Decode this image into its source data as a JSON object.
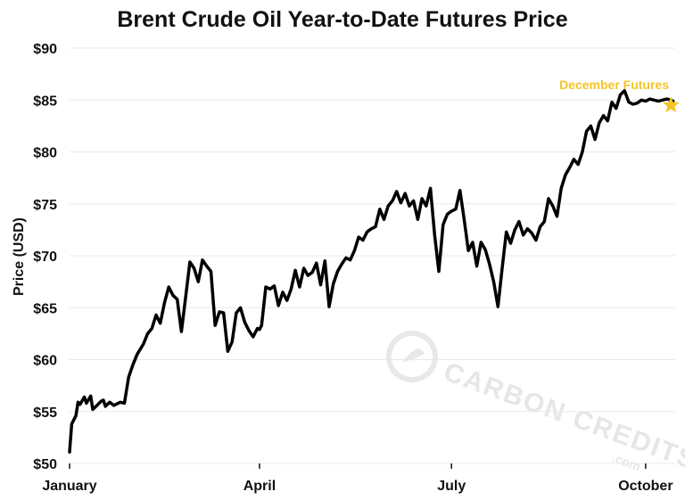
{
  "chart_data": {
    "type": "line",
    "title": "Brent Crude Oil Year-to-Date Futures Price",
    "xlabel": "",
    "ylabel": "Price (USD)",
    "ylim": [
      50,
      90
    ],
    "yticks": [
      50,
      55,
      60,
      65,
      70,
      75,
      80,
      85,
      90
    ],
    "ytick_labels": [
      "$50",
      "$55",
      "$60",
      "$65",
      "$70",
      "$75",
      "$80",
      "$85",
      "$90"
    ],
    "xticks": [
      1,
      91,
      182,
      274
    ],
    "xtick_labels": [
      "January",
      "April",
      "July",
      "October"
    ],
    "xlim": [
      1,
      288
    ],
    "grid": true,
    "legend": "none",
    "colors": {
      "line": "#000000",
      "grid": "#e8e8e8",
      "annotation": "#f5c425",
      "watermark": "#e6e6e6"
    },
    "series": [
      {
        "x": [
          1,
          2,
          4,
          5,
          6,
          8,
          9,
          11,
          12,
          13,
          14,
          15,
          16,
          17,
          18,
          20,
          22,
          25,
          27,
          29,
          31,
          33,
          36,
          38,
          40,
          42,
          44,
          46,
          48,
          50,
          52,
          54,
          56,
          58,
          60,
          62,
          64,
          66,
          68,
          70,
          72,
          74,
          76,
          78,
          80,
          82,
          84,
          86,
          88,
          89,
          90,
          91,
          92,
          94,
          96,
          98,
          100,
          102,
          104,
          106,
          108,
          110,
          112,
          114,
          116,
          118,
          120,
          122,
          124,
          126,
          128,
          130,
          132,
          134,
          136,
          138,
          140,
          142,
          144,
          146,
          148,
          150,
          152,
          154,
          156,
          158,
          160,
          162,
          164,
          166,
          168,
          170,
          172,
          174,
          176,
          178,
          180,
          182,
          184,
          186,
          188,
          190,
          192,
          194,
          196,
          198,
          200,
          202,
          204,
          206,
          208,
          210,
          212,
          214,
          216,
          218,
          220,
          222,
          224,
          226,
          228,
          230,
          232,
          234,
          236,
          238,
          240,
          242,
          244,
          246,
          248,
          250,
          252,
          254,
          256,
          258,
          260,
          262,
          264,
          266,
          268,
          270,
          272,
          274,
          276,
          278,
          280,
          282,
          284,
          286,
          287
        ],
        "values": [
          51.1,
          53.8,
          54.6,
          55.9,
          55.7,
          56.4,
          55.8,
          56.5,
          55.2,
          55.4,
          55.6,
          55.8,
          56.0,
          56.1,
          55.5,
          55.9,
          55.6,
          55.9,
          55.8,
          58.3,
          59.5,
          60.5,
          61.5,
          62.5,
          63.0,
          64.3,
          63.5,
          65.5,
          67.0,
          66.2,
          65.8,
          62.7,
          66.0,
          69.4,
          68.8,
          67.5,
          69.6,
          69.0,
          68.5,
          63.3,
          64.6,
          64.5,
          60.8,
          61.7,
          64.5,
          65.0,
          63.6,
          62.8,
          62.2,
          62.6,
          63.0,
          62.9,
          63.3,
          67.0,
          66.8,
          67.1,
          65.2,
          66.5,
          65.7,
          66.8,
          68.6,
          67.0,
          68.8,
          68.1,
          68.4,
          69.3,
          67.2,
          69.5,
          65.1,
          67.3,
          68.5,
          69.2,
          69.8,
          69.6,
          70.5,
          71.8,
          71.5,
          72.3,
          72.6,
          72.8,
          74.5,
          73.5,
          74.8,
          75.3,
          76.2,
          75.1,
          76.0,
          74.8,
          75.3,
          73.5,
          75.5,
          74.8,
          76.5,
          72.0,
          68.5,
          73.0,
          74.0,
          74.3,
          74.5,
          76.3,
          73.5,
          70.5,
          71.3,
          69.0,
          71.3,
          70.6,
          69.2,
          67.5,
          65.1,
          68.8,
          72.3,
          71.2,
          72.5,
          73.3,
          72.0,
          72.6,
          72.2,
          71.5,
          72.8,
          73.3,
          75.5,
          74.8,
          73.8,
          76.5,
          77.8,
          78.5,
          79.3,
          78.8,
          80.0,
          82.0,
          82.5,
          81.2,
          82.8,
          83.5,
          83.0,
          84.8,
          84.2,
          85.5,
          85.9,
          84.8,
          84.6,
          84.7,
          85.0,
          84.9,
          85.1,
          85.0,
          84.9,
          85.0,
          85.1,
          85.0,
          84.9
        ]
      }
    ],
    "annotation": {
      "text": "December Futures",
      "x": 286,
      "y": 84.5,
      "marker": "star"
    },
    "watermark": {
      "text": "CARBON CREDITS",
      "sub": ".com"
    }
  }
}
